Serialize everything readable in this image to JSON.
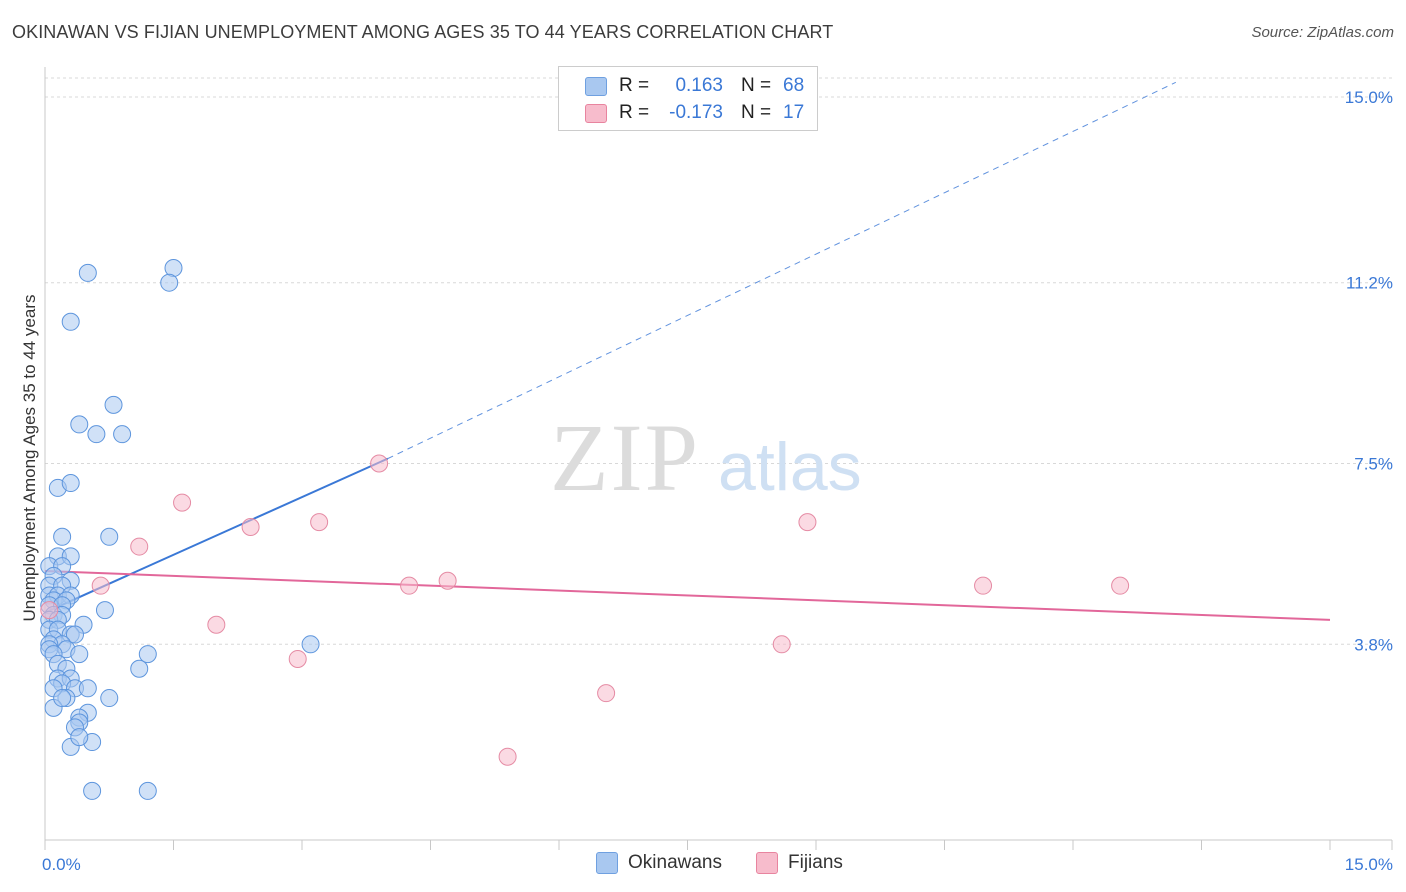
{
  "title": "OKINAWAN VS FIJIAN UNEMPLOYMENT AMONG AGES 35 TO 44 YEARS CORRELATION CHART",
  "source": "Source: ZipAtlas.com",
  "watermark": {
    "zip": "ZIP",
    "atlas": "atlas"
  },
  "legend": {
    "rows": [
      {
        "r_label": "R =",
        "r_value": "0.163",
        "n_label": "N =",
        "n_value": "68",
        "color": "#a9c8f0",
        "border": "#6fa0e0"
      },
      {
        "r_label": "R =",
        "r_value": "-0.173",
        "n_label": "N =",
        "n_value": "17",
        "color": "#f7bccc",
        "border": "#e8849f"
      }
    ]
  },
  "bottom_legend": [
    {
      "label": "Okinawans",
      "color": "#a9c8f0"
    },
    {
      "label": "Fijians",
      "color": "#f7bccc"
    }
  ],
  "chart_data": {
    "type": "scatter",
    "title": "OKINAWAN VS FIJIAN UNEMPLOYMENT AMONG AGES 35 TO 44 YEARS CORRELATION CHART",
    "xlabel": "",
    "ylabel": "Unemployment Among Ages 35 to 44 years",
    "xlim": [
      0,
      15
    ],
    "ylim": [
      0,
      15.3
    ],
    "x_tick_labels": [
      {
        "value": 0,
        "label": "0.0%"
      },
      {
        "value": 15,
        "label": "15.0%"
      }
    ],
    "y_tick_labels": [
      {
        "value": 3.8,
        "label": "3.8%"
      },
      {
        "value": 7.5,
        "label": "7.5%"
      },
      {
        "value": 11.2,
        "label": "11.2%"
      },
      {
        "value": 15.0,
        "label": "15.0%"
      }
    ],
    "colors": {
      "okinawans_fill": "#a9c8f0",
      "okinawans_stroke": "#5d95dd",
      "okinawans_line": "#3a78d6",
      "fijians_fill": "#f7bccc",
      "fijians_stroke": "#e58ba4",
      "fijians_line": "#e2679a",
      "grid": "#d8d8d8",
      "tick_label": "#3a78d6"
    },
    "series": [
      {
        "name": "Okinawans",
        "points": [
          [
            0.5,
            11.4
          ],
          [
            1.5,
            11.5
          ],
          [
            1.45,
            11.2
          ],
          [
            0.3,
            10.4
          ],
          [
            0.8,
            8.7
          ],
          [
            0.4,
            8.3
          ],
          [
            0.6,
            8.1
          ],
          [
            0.9,
            8.1
          ],
          [
            0.15,
            7.0
          ],
          [
            0.3,
            7.1
          ],
          [
            0.75,
            6.0
          ],
          [
            0.2,
            6.0
          ],
          [
            0.15,
            5.6
          ],
          [
            0.3,
            5.6
          ],
          [
            0.05,
            5.4
          ],
          [
            0.2,
            5.4
          ],
          [
            0.1,
            5.2
          ],
          [
            0.3,
            5.1
          ],
          [
            0.05,
            5.0
          ],
          [
            0.2,
            5.0
          ],
          [
            0.05,
            4.8
          ],
          [
            0.15,
            4.8
          ],
          [
            0.3,
            4.8
          ],
          [
            0.1,
            4.7
          ],
          [
            0.25,
            4.7
          ],
          [
            0.05,
            4.6
          ],
          [
            0.2,
            4.6
          ],
          [
            0.7,
            4.5
          ],
          [
            0.1,
            4.4
          ],
          [
            0.2,
            4.4
          ],
          [
            0.05,
            4.3
          ],
          [
            0.15,
            4.3
          ],
          [
            0.45,
            4.2
          ],
          [
            0.05,
            4.1
          ],
          [
            0.15,
            4.1
          ],
          [
            0.3,
            4.0
          ],
          [
            0.35,
            4.0
          ],
          [
            0.1,
            3.9
          ],
          [
            0.2,
            3.8
          ],
          [
            0.05,
            3.8
          ],
          [
            0.25,
            3.7
          ],
          [
            0.05,
            3.7
          ],
          [
            0.1,
            3.6
          ],
          [
            0.4,
            3.6
          ],
          [
            1.2,
            3.6
          ],
          [
            3.1,
            3.8
          ],
          [
            0.15,
            3.4
          ],
          [
            0.25,
            3.3
          ],
          [
            1.1,
            3.3
          ],
          [
            0.15,
            3.1
          ],
          [
            0.3,
            3.1
          ],
          [
            0.2,
            3.0
          ],
          [
            0.35,
            2.9
          ],
          [
            0.5,
            2.9
          ],
          [
            0.75,
            2.7
          ],
          [
            0.25,
            2.7
          ],
          [
            0.1,
            2.5
          ],
          [
            0.5,
            2.4
          ],
          [
            0.4,
            2.3
          ],
          [
            0.4,
            2.2
          ],
          [
            0.35,
            2.1
          ],
          [
            0.3,
            1.7
          ],
          [
            0.55,
            1.8
          ],
          [
            0.55,
            0.8
          ],
          [
            1.2,
            0.8
          ],
          [
            0.1,
            2.9
          ],
          [
            0.2,
            2.7
          ],
          [
            0.4,
            1.9
          ]
        ]
      },
      {
        "name": "Fijians",
        "points": [
          [
            3.9,
            7.5
          ],
          [
            1.6,
            6.7
          ],
          [
            3.2,
            6.3
          ],
          [
            2.4,
            6.2
          ],
          [
            8.9,
            6.3
          ],
          [
            1.1,
            5.8
          ],
          [
            0.65,
            5.0
          ],
          [
            0.05,
            4.5
          ],
          [
            4.25,
            5.0
          ],
          [
            4.7,
            5.1
          ],
          [
            10.95,
            5.0
          ],
          [
            12.55,
            5.0
          ],
          [
            2.0,
            4.2
          ],
          [
            2.95,
            3.5
          ],
          [
            8.6,
            3.8
          ],
          [
            6.55,
            2.8
          ],
          [
            5.4,
            1.5
          ]
        ]
      }
    ],
    "trend_lines": [
      {
        "name": "Okinawans",
        "x_start": 0,
        "y_start": 4.45,
        "x_solid_end": 4.0,
        "y_solid_end": 7.6,
        "x_dashed_end": 13.2,
        "y_dashed_end": 15.3
      },
      {
        "name": "Fijians",
        "x_start": 0,
        "y_start": 5.3,
        "x_end": 15,
        "y_end": 4.3
      }
    ]
  }
}
